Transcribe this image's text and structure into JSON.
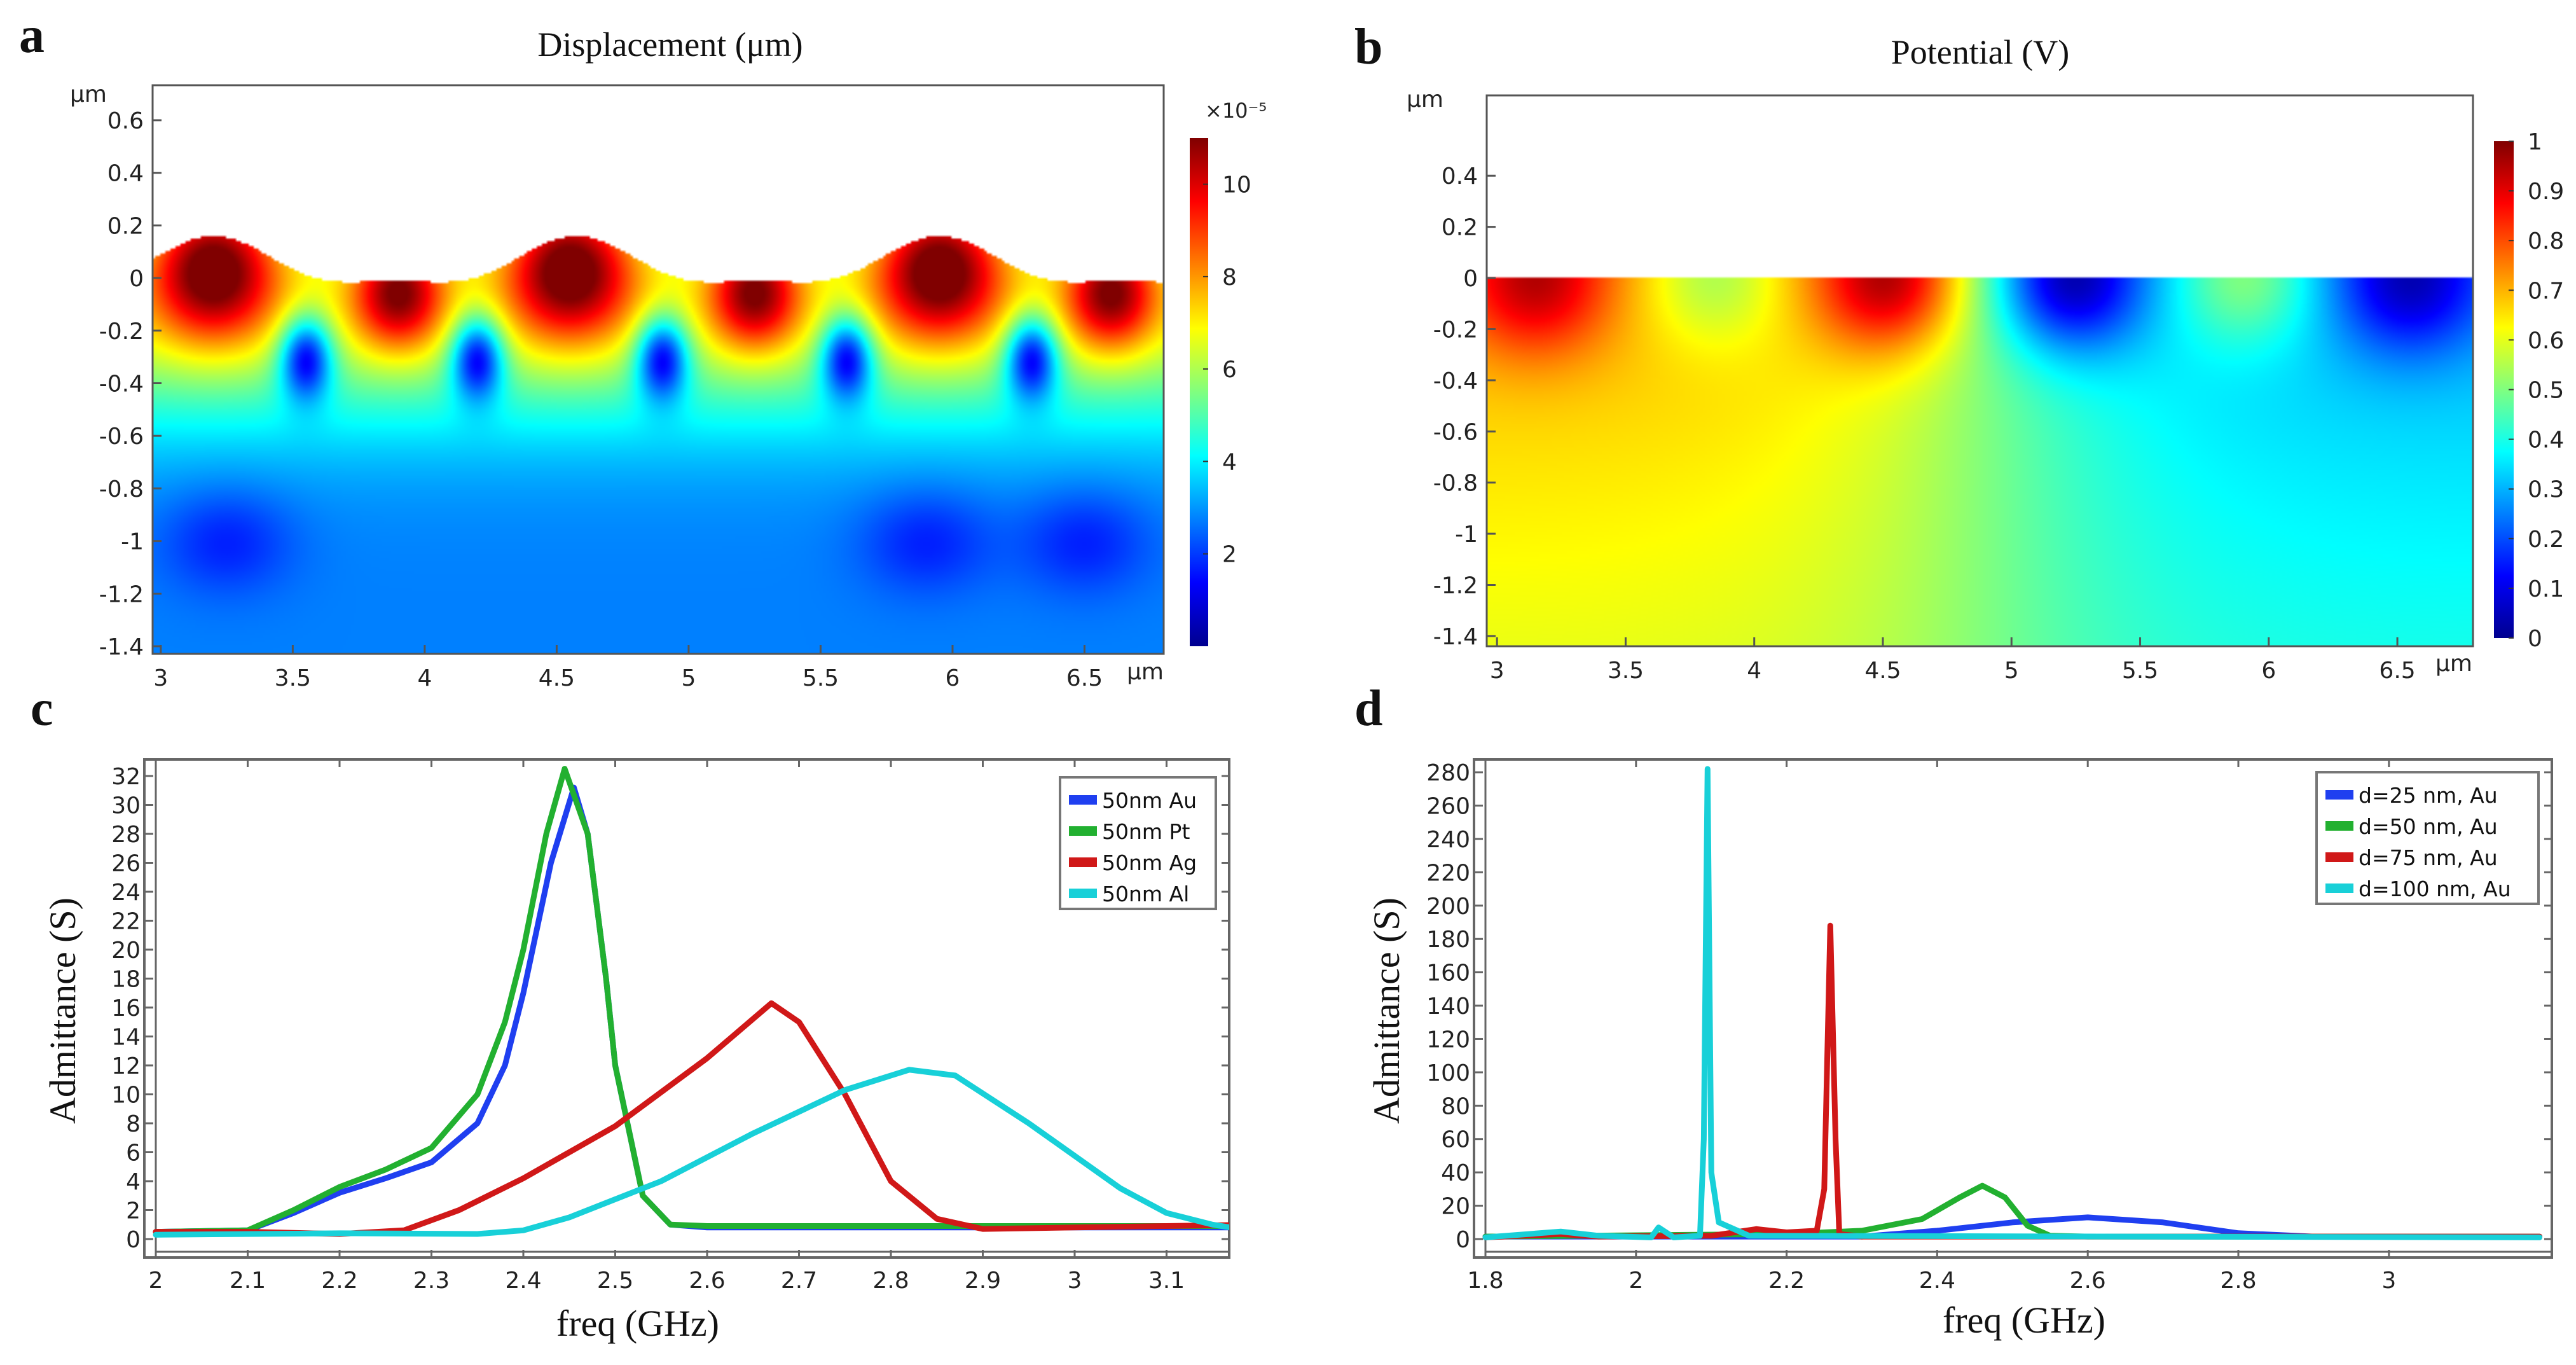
{
  "panel_letters": {
    "a": "a",
    "b": "b",
    "c": "c",
    "d": "d"
  },
  "heatmaps": [
    {
      "title": "Displacement (μm)",
      "x_unit": "μm",
      "y_unit": "μm",
      "x_ticks": [
        "3",
        "3.5",
        "4",
        "4.5",
        "5",
        "5.5",
        "6",
        "6.5"
      ],
      "y_ticks": [
        "0.6",
        "0.4",
        "0.2",
        "0",
        "-0.2",
        "-0.4",
        "-0.6",
        "-0.8",
        "-1",
        "-1.2",
        "-1.4"
      ],
      "colorbar": {
        "exponent_label": "×10⁻⁵",
        "ticks": [
          "2",
          "4",
          "6",
          "8",
          "10"
        ],
        "range": [
          0,
          11
        ]
      }
    },
    {
      "title": "Potential (V)",
      "x_unit": "μm",
      "y_unit": "μm",
      "x_ticks": [
        "3",
        "3.5",
        "4",
        "4.5",
        "5",
        "5.5",
        "6",
        "6.5"
      ],
      "y_ticks": [
        "0.4",
        "0.2",
        "0",
        "-0.2",
        "-0.4",
        "-0.6",
        "-0.8",
        "-1",
        "-1.2",
        "-1.4"
      ],
      "colorbar": {
        "exponent_label": "",
        "ticks": [
          "0",
          "0.1",
          "0.2",
          "0.3",
          "0.4",
          "0.5",
          "0.6",
          "0.7",
          "0.8",
          "0.9",
          "1"
        ],
        "range": [
          0,
          1
        ]
      }
    }
  ],
  "chart_data": [
    {
      "type": "line",
      "title": "",
      "xlabel": "freq (GHz)",
      "ylabel": "Admittance (S)",
      "xlim": [
        2,
        3.2
      ],
      "ylim": [
        0,
        33
      ],
      "grid": false,
      "legend_position": "top-right",
      "x_ticks": [
        "2",
        "2.1",
        "2.2",
        "2.3",
        "2.4",
        "2.5",
        "2.6",
        "2.7",
        "2.8",
        "2.9",
        "3",
        "3.1"
      ],
      "y_ticks": [
        "0",
        "2",
        "4",
        "6",
        "8",
        "10",
        "12",
        "14",
        "16",
        "18",
        "20",
        "22",
        "24",
        "26",
        "28",
        "30",
        "32"
      ],
      "series": [
        {
          "name": "50nm Au",
          "color": "#1f3ff0",
          "x": [
            2,
            2.1,
            2.15,
            2.2,
            2.25,
            2.3,
            2.35,
            2.38,
            2.4,
            2.43,
            2.455,
            2.47,
            2.49,
            2.5,
            2.53,
            2.56,
            2.6,
            3.2
          ],
          "y": [
            0.5,
            0.6,
            1.8,
            3.2,
            4.2,
            5.3,
            8,
            12,
            17,
            26,
            31.2,
            28,
            18,
            12,
            3,
            1.0,
            0.8,
            0.8
          ]
        },
        {
          "name": "50nm Pt",
          "color": "#22b030",
          "x": [
            2,
            2.1,
            2.15,
            2.2,
            2.25,
            2.3,
            2.35,
            2.38,
            2.4,
            2.425,
            2.445,
            2.47,
            2.49,
            2.5,
            2.53,
            2.56,
            2.6,
            3.2
          ],
          "y": [
            0.5,
            0.6,
            2,
            3.6,
            4.8,
            6.3,
            10,
            15,
            20,
            28,
            32.5,
            28,
            18,
            12,
            3,
            1,
            0.9,
            0.9
          ]
        },
        {
          "name": "50nm Ag",
          "color": "#d01818",
          "x": [
            2,
            2.1,
            2.2,
            2.27,
            2.33,
            2.4,
            2.5,
            2.6,
            2.67,
            2.7,
            2.75,
            2.8,
            2.85,
            2.9,
            3.0,
            3.2
          ],
          "y": [
            0.5,
            0.5,
            0.35,
            0.6,
            2,
            4.2,
            7.8,
            12.5,
            16.3,
            15,
            10,
            4,
            1.4,
            0.7,
            0.8,
            1.0
          ]
        },
        {
          "name": "50nm Al",
          "color": "#18d0d8",
          "x": [
            2,
            2.2,
            2.35,
            2.4,
            2.45,
            2.55,
            2.65,
            2.75,
            2.82,
            2.87,
            2.95,
            3.05,
            3.1,
            3.15,
            3.2
          ],
          "y": [
            0.3,
            0.4,
            0.35,
            0.6,
            1.5,
            4,
            7.3,
            10.3,
            11.7,
            11.3,
            8,
            3.5,
            1.8,
            1.0,
            0.5
          ]
        }
      ]
    },
    {
      "type": "line",
      "title": "",
      "xlabel": "freq (GHz)",
      "ylabel": "Admittance (S)",
      "xlim": [
        1.8,
        3.2
      ],
      "ylim": [
        0,
        290
      ],
      "grid": false,
      "legend_position": "top-right",
      "x_ticks": [
        "1.8",
        "2",
        "2.2",
        "2.4",
        "2.6",
        "2.8",
        "3"
      ],
      "y_ticks": [
        "0",
        "20",
        "40",
        "60",
        "80",
        "100",
        "120",
        "140",
        "160",
        "180",
        "200",
        "220",
        "240",
        "260",
        "280"
      ],
      "series": [
        {
          "name": "d=25 nm, Au",
          "color": "#1f3ff0",
          "x": [
            1.8,
            2.3,
            2.4,
            2.5,
            2.6,
            2.7,
            2.8,
            2.9,
            3.2
          ],
          "y": [
            1.5,
            1.5,
            5,
            10,
            13,
            10,
            3.5,
            1.5,
            1.5
          ]
        },
        {
          "name": "d=50 nm, Au",
          "color": "#22b030",
          "x": [
            1.8,
            2.2,
            2.3,
            2.38,
            2.43,
            2.46,
            2.49,
            2.52,
            2.55,
            2.6,
            3.2
          ],
          "y": [
            1.5,
            3,
            5,
            12,
            25,
            32,
            25,
            8,
            2,
            1.5,
            1.5
          ]
        },
        {
          "name": "d=75 nm, Au",
          "color": "#d01818",
          "x": [
            1.8,
            1.9,
            1.95,
            2.1,
            2.16,
            2.2,
            2.24,
            2.25,
            2.258,
            2.265,
            2.27,
            2.3,
            3.2
          ],
          "y": [
            1,
            3,
            1.5,
            2,
            6,
            4,
            5,
            30,
            188,
            60,
            3,
            1.5,
            1.5
          ]
        },
        {
          "name": "d=100 nm, Au",
          "color": "#18d0d8",
          "x": [
            1.8,
            1.9,
            1.95,
            2.02,
            2.03,
            2.05,
            2.085,
            2.09,
            2.095,
            2.1,
            2.11,
            2.15,
            3.2
          ],
          "y": [
            1,
            4.5,
            2,
            1,
            7,
            1,
            2,
            60,
            282,
            40,
            10,
            2,
            1
          ]
        }
      ]
    }
  ]
}
